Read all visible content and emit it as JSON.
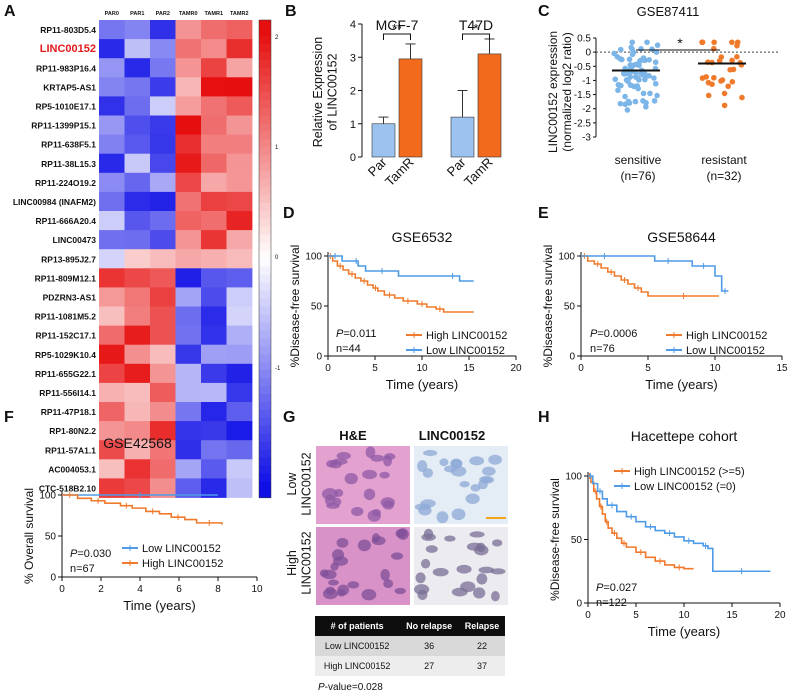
{
  "panels": {
    "A": {
      "letter": "A",
      "columns": [
        "PAR0",
        "PAR1",
        "PAR2",
        "TAMR0",
        "TAMR1",
        "TAMR2"
      ],
      "genes": [
        "RP11-803D5.4",
        "LINC00152",
        "RP11-983P16.4",
        "KRTAP5-AS1",
        "RP5-1010E17.1",
        "RP11-1399P15.1",
        "RP11-638F5.1",
        "RP11-38L15.3",
        "RP11-224O19.2",
        "LINC00984 (INAFM2)",
        "RP11-666A20.4",
        "LINC00473",
        "RP13-895J2.7",
        "RP11-809M12.1",
        "PDZRN3-AS1",
        "RP11-1081M5.2",
        "RP11-152C17.1",
        "RP5-1029K10.4",
        "RP11-655G22.1",
        "RP11-556I14.1",
        "RP11-47P18.1",
        "RP1-80N2.2",
        "RP11-57A1.1",
        "AC004053.1",
        "CTC-518B2.10"
      ],
      "highlight_gene": "LINC00152",
      "highlight_color": "#e31a1c",
      "colorbar_ticks": [
        "2",
        "1",
        "0",
        "-1"
      ],
      "low_color": "#1010e6",
      "mid_color": "#ffffff",
      "high_color": "#e60f0f"
    },
    "B": {
      "letter": "B",
      "ylabel": "Relative Expression\nof LINC00152",
      "yticks": [
        "0",
        "1",
        "2",
        "3",
        "4"
      ],
      "chart_data": {
        "type": "bar",
        "groups": [
          "MCF-7",
          "T47D"
        ],
        "categories": [
          "Par",
          "TamR"
        ],
        "values": [
          [
            1.0,
            2.95
          ],
          [
            1.2,
            3.1
          ]
        ],
        "errors": [
          [
            0.2,
            0.45
          ],
          [
            0.8,
            0.45
          ]
        ],
        "significance": [
          "**",
          "*"
        ],
        "ylim": [
          0,
          4
        ],
        "colors": [
          "#9cc3f0",
          "#f26b1d"
        ]
      }
    },
    "C": {
      "letter": "C",
      "title": "GSE87411",
      "ylabel": "LINC00152 expression\n(normalized log2 ratio)",
      "yticks": [
        "0.5",
        "0",
        "-0.5",
        "-1",
        "-1.5",
        "-2",
        "-2.5",
        "-3"
      ],
      "xlabels": [
        [
          "sensitive",
          "(n=76)"
        ],
        [
          "resistant",
          "(n=32)"
        ]
      ],
      "significance": "*",
      "chart_data": {
        "type": "scatter",
        "groups": [
          "sensitive",
          "resistant"
        ],
        "n": [
          76,
          32
        ],
        "means": [
          -0.65,
          -0.4
        ],
        "ylim": [
          -3.0,
          0.5
        ],
        "colors": [
          "#7cb5e8",
          "#f07a2b"
        ]
      }
    },
    "D": {
      "letter": "D",
      "title": "GSE6532",
      "ylabel": "%Disease-free survival",
      "xlabel": "Time (years)",
      "xticks": [
        "0",
        "5",
        "10",
        "15",
        "20"
      ],
      "yticks": [
        "0",
        "50",
        "100"
      ],
      "pvalue": "P=0.011",
      "n": "n=44",
      "legend": [
        {
          "label": "High LINC00152",
          "color": "#f07a2b"
        },
        {
          "label": "Low LINC00152",
          "color": "#4f9be6"
        }
      ],
      "chart_data": {
        "type": "line",
        "xlim": [
          0,
          20
        ],
        "ylim": [
          0,
          100
        ],
        "series": [
          {
            "name": "High LINC00152",
            "x": [
              0,
              0.5,
              1,
              1.6,
              2.2,
              2.9,
              3.5,
              4.2,
              4.8,
              5.3,
              6.0,
              7.1,
              8.0,
              9.0,
              9.5,
              10.5,
              11.5,
              12.3,
              15.5
            ],
            "y": [
              100,
              95,
              90,
              86,
              82,
              78,
              75,
              71,
              68,
              65,
              61,
              58,
              55,
              55,
              52,
              49,
              47,
              44,
              44
            ]
          },
          {
            "name": "Low LINC00152",
            "x": [
              0,
              1.5,
              2.8,
              3.2,
              4.0,
              7.5,
              12.5,
              14.0,
              15.5
            ],
            "y": [
              100,
              95,
              95,
              90,
              85,
              80,
              80,
              75,
              75
            ]
          }
        ]
      }
    },
    "E": {
      "letter": "E",
      "title": "GSE58644",
      "ylabel": "%Disease-free survival",
      "xlabel": "Time (years)",
      "xticks": [
        "0",
        "5",
        "10",
        "15"
      ],
      "yticks": [
        "0",
        "50",
        "100"
      ],
      "pvalue": "P=0.0006",
      "n": "n=76",
      "legend": [
        {
          "label": "High LINC00152",
          "color": "#f07a2b"
        },
        {
          "label": "Low LINC00152",
          "color": "#4f9be6"
        }
      ],
      "chart_data": {
        "type": "line",
        "xlim": [
          0,
          15
        ],
        "ylim": [
          0,
          100
        ],
        "series": [
          {
            "name": "High LINC00152",
            "x": [
              0,
              0.5,
              1.0,
              1.5,
              2.0,
              2.5,
              3.0,
              3.5,
              4.0,
              4.5,
              5.0,
              10.3
            ],
            "y": [
              100,
              95,
              92,
              88,
              84,
              80,
              76,
              72,
              68,
              64,
              60,
              60
            ]
          },
          {
            "name": "Low LINC00152",
            "x": [
              0,
              3.5,
              5.5,
              7.5,
              8.3,
              10.0,
              10.5,
              11.0
            ],
            "y": [
              100,
              100,
              95,
              95,
              90,
              80,
              65,
              65
            ]
          }
        ]
      }
    },
    "F": {
      "letter": "F",
      "title": "GSE42568",
      "ylabel": "% Overall survival",
      "xlabel": "Time (years)",
      "xticks": [
        "0",
        "2",
        "4",
        "6",
        "8",
        "10"
      ],
      "yticks": [
        "0",
        "50",
        "100"
      ],
      "pvalue": "P=0.030",
      "n": "n=67",
      "legend": [
        {
          "label": "Low LINC00152",
          "color": "#4f9be6"
        },
        {
          "label": "High LINC00152",
          "color": "#f07a2b"
        }
      ],
      "chart_data": {
        "type": "line",
        "xlim": [
          0,
          10
        ],
        "ylim": [
          0,
          100
        ],
        "series": [
          {
            "name": "Low LINC00152",
            "x": [
              0,
              8.0
            ],
            "y": [
              100,
              100
            ]
          },
          {
            "name": "High LINC00152",
            "x": [
              0,
              0.8,
              1.5,
              2.2,
              3.0,
              3.6,
              4.3,
              5.0,
              5.6,
              6.3,
              6.9,
              8.2
            ],
            "y": [
              100,
              96,
              93,
              90,
              87,
              84,
              80,
              77,
              73,
              70,
              66,
              64
            ]
          }
        ]
      }
    },
    "G": {
      "letter": "G",
      "col_headers": [
        "H&E",
        "LINC00152"
      ],
      "row_labels": [
        [
          "Low",
          "LINC00152"
        ],
        [
          "High",
          "LINC00152"
        ]
      ],
      "table": {
        "headers": [
          "# of patients",
          "No relapse",
          "Relapse"
        ],
        "rows": [
          [
            "Low LINC00152",
            "36",
            "22"
          ],
          [
            "High LINC00152",
            "27",
            "37"
          ]
        ]
      },
      "pvalue_label": "P",
      "pvalue_rest": "-value=0.028"
    },
    "H": {
      "letter": "H",
      "title": "Hacettepe cohort",
      "ylabel": "%Disease-free survival",
      "xlabel": "Time (years)",
      "xticks": [
        "0",
        "5",
        "10",
        "15",
        "20"
      ],
      "yticks": [
        "0",
        "50",
        "100"
      ],
      "pvalue": "P=0.027",
      "n": "n=122",
      "legend": [
        {
          "label": "High LINC00152 (>=5)",
          "color": "#f07a2b"
        },
        {
          "label": "Low LINC00152 (=0)",
          "color": "#4f9be6"
        }
      ],
      "chart_data": {
        "type": "line",
        "xlim": [
          0,
          20
        ],
        "ylim": [
          0,
          100
        ],
        "series": [
          {
            "name": "High LINC00152 (>=5)",
            "x": [
              0,
              0.3,
              0.6,
              0.9,
              1.2,
              1.5,
              1.8,
              2.1,
              2.5,
              3.0,
              3.5,
              4.0,
              5.0,
              6.0,
              7.0,
              8.0,
              9.0,
              10.0,
              11.0
            ],
            "y": [
              100,
              95,
              88,
              82,
              76,
              70,
              64,
              59,
              55,
              51,
              47,
              44,
              40,
              36,
              33,
              30,
              28,
              27,
              27
            ]
          },
          {
            "name": "Low LINC00152 (=0)",
            "x": [
              0,
              0.5,
              1.0,
              1.5,
              2.0,
              3.0,
              4.0,
              5.0,
              6.0,
              7.0,
              8.0,
              9.0,
              10.0,
              11.0,
              12.0,
              12.5,
              13.0,
              19.0
            ],
            "y": [
              100,
              94,
              88,
              82,
              77,
              72,
              68,
              64,
              60,
              57,
              55,
              52,
              49,
              47,
              45,
              43,
              25,
              25
            ]
          }
        ]
      }
    }
  }
}
